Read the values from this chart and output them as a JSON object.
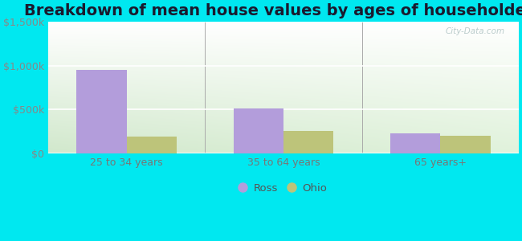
{
  "title": "Breakdown of mean house values by ages of householders",
  "categories": [
    "25 to 34 years",
    "35 to 64 years",
    "65 years+"
  ],
  "ross_values": [
    950000,
    510000,
    230000
  ],
  "ohio_values": [
    190000,
    255000,
    195000
  ],
  "ylim": [
    0,
    1500000
  ],
  "yticks": [
    0,
    500000,
    1000000,
    1500000
  ],
  "ytick_labels": [
    "$0",
    "$500k",
    "$1,000k",
    "$1,500k"
  ],
  "bar_width": 0.32,
  "ross_color": "#b39ddb",
  "ohio_color": "#bdc47a",
  "bg_outer": "#00e8f0",
  "title_fontsize": 14,
  "tick_fontsize": 9,
  "legend_labels": [
    "Ross",
    "Ohio"
  ],
  "watermark": "City-Data.com"
}
